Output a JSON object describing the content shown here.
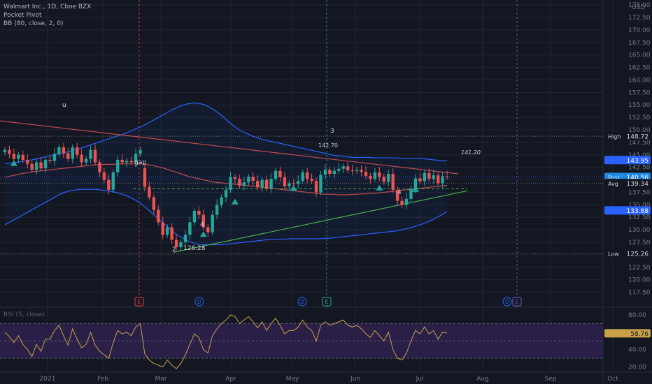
{
  "legend": {
    "title": "Walmart Inc., 1D, Cboe BZX",
    "indicator_1": "Pocket Pivot",
    "indicator_2": "BB (80, close, 2, 0)"
  },
  "rsi_legend": "RSI (5, close)",
  "colors": {
    "background": "#131722",
    "grid": "#232632",
    "up": "#26a69a",
    "down": "#ef5350",
    "bb_band": "#2962ff",
    "bb_basis": "#c24b4b",
    "trendline_upper": "#c24b4b",
    "trendline_lower": "#4caf50",
    "rsi_line": "#c9a14a",
    "rsi_fill": "#2a1f47",
    "post_label": "#2962ff",
    "event_earnings": "#f23645",
    "event_dividend": "#2962ff",
    "event_e": "#26a69a",
    "event_d_purple": "#7e57c2"
  },
  "chart_data": [
    {
      "type": "candlestick",
      "ylim": [
        114.5,
        176
      ],
      "y_ticks": [
        "117.50",
        "120.00",
        "122.50",
        "125.00",
        "127.50",
        "130.00",
        "132.50",
        "135.00",
        "137.50",
        "140.00",
        "142.50",
        "145.00",
        "147.50",
        "150.00",
        "152.50",
        "155.00",
        "157.50",
        "160.00",
        "162.50",
        "165.00",
        "167.50",
        "170.00",
        "172.50",
        "175.00"
      ],
      "y_unit": "USD",
      "x_labels": [
        "2021",
        "Feb",
        "Mar",
        "Apr",
        "May",
        "Jun",
        "Jul",
        "Aug",
        "Sep",
        "Oct"
      ],
      "closes": [
        146.0,
        145.2,
        144.2,
        145.0,
        144.0,
        143.2,
        142.0,
        143.5,
        142.3,
        144.0,
        143.8,
        145.2,
        146.5,
        145.3,
        144.2,
        146.5,
        145.0,
        143.5,
        144.2,
        146.0,
        143.5,
        141.5,
        140.0,
        138.0,
        141.5,
        144.0,
        143.5,
        143.8,
        143.5,
        145.2,
        146.0,
        138.6,
        136.5,
        134.0,
        131.5,
        129.0,
        130.5,
        128.0,
        126.5,
        127.5,
        129.0,
        131.5,
        133.8,
        133.0,
        130.5,
        129.5,
        133.0,
        135.0,
        136.5,
        138.0,
        140.5,
        140.2,
        138.8,
        139.5,
        140.6,
        139.8,
        138.5,
        140.0,
        138.3,
        140.2,
        141.8,
        140.5,
        138.7,
        139.3,
        139.2,
        139.8,
        141.5,
        140.2,
        139.8,
        137.5,
        141.0,
        142.0,
        141.2,
        141.8,
        142.2,
        142.7,
        141.9,
        141.8,
        142.0,
        141.6,
        140.8,
        140.2,
        141.5,
        140.6,
        139.6,
        141.2,
        138.0,
        135.8,
        135.0,
        136.2,
        138.2,
        140.3,
        139.7,
        141.4,
        140.2,
        140.9,
        139.3,
        140.7,
        140.6
      ],
      "opens": [
        145.5,
        146.0,
        145.2,
        144.2,
        145.0,
        144.0,
        143.2,
        142.0,
        143.5,
        142.3,
        144.0,
        143.8,
        145.2,
        146.5,
        145.3,
        144.2,
        146.5,
        145.0,
        143.5,
        144.2,
        146.0,
        143.5,
        141.5,
        140.0,
        138.0,
        141.5,
        144.0,
        143.5,
        143.8,
        143.5,
        145.2,
        142.3,
        138.6,
        136.5,
        134.0,
        131.5,
        129.0,
        130.5,
        128.0,
        126.5,
        127.5,
        129.0,
        131.5,
        133.8,
        133.0,
        130.5,
        129.5,
        133.0,
        135.0,
        136.5,
        138.0,
        140.5,
        140.2,
        138.8,
        139.5,
        140.6,
        139.8,
        138.5,
        140.0,
        138.3,
        140.2,
        141.8,
        140.5,
        138.7,
        139.3,
        139.2,
        139.8,
        141.5,
        140.2,
        139.8,
        137.5,
        141.0,
        142.0,
        141.2,
        141.8,
        142.2,
        142.7,
        141.9,
        141.8,
        142.0,
        141.6,
        140.8,
        140.2,
        141.5,
        140.6,
        139.6,
        141.2,
        138.0,
        135.8,
        135.0,
        136.2,
        138.2,
        140.3,
        139.7,
        141.4,
        140.2,
        140.9,
        139.3,
        140.7
      ],
      "bb_upper": [
        143.2,
        143.3,
        143.4,
        143.6,
        143.7,
        143.9,
        144.0,
        144.2,
        144.4,
        144.6,
        144.8,
        145.0,
        145.2,
        145.4,
        145.6,
        145.9,
        146.1,
        146.4,
        146.7,
        147.0,
        147.3,
        147.6,
        147.9,
        148.2,
        148.5,
        148.8,
        149.1,
        149.4,
        149.8,
        150.2,
        150.6,
        151.0,
        151.5,
        152.0,
        152.5,
        153.0,
        153.5,
        154.0,
        154.4,
        154.8,
        155.1,
        155.3,
        155.4,
        155.3,
        155.1,
        154.7,
        154.2,
        153.6,
        152.9,
        152.1,
        151.3,
        150.6,
        150.0,
        149.5,
        149.1,
        148.7,
        148.4,
        148.1,
        147.9,
        147.7,
        147.5,
        147.3,
        147.1,
        146.9,
        146.7,
        146.5,
        146.3,
        146.1,
        145.9,
        145.7,
        145.5,
        145.3,
        145.1,
        144.9,
        144.8,
        144.7,
        144.6,
        144.5,
        144.5,
        144.5,
        144.5,
        144.5,
        144.4,
        144.4,
        144.4,
        144.4,
        144.4,
        144.4,
        144.3,
        144.3,
        144.3,
        144.3,
        144.3,
        144.2,
        144.1,
        144.0,
        143.9,
        143.8,
        143.8
      ],
      "bb_basis": [
        140.5,
        140.7,
        140.9,
        141.1,
        141.3,
        141.4,
        141.6,
        141.7,
        141.8,
        141.9,
        142.0,
        142.1,
        142.2,
        142.3,
        142.4,
        142.5,
        142.6,
        142.7,
        142.8,
        142.9,
        143.0,
        143.0,
        143.1,
        143.1,
        143.1,
        143.2,
        143.2,
        143.2,
        143.2,
        143.2,
        143.2,
        143.1,
        143.0,
        142.8,
        142.6,
        142.4,
        142.1,
        141.8,
        141.5,
        141.2,
        140.9,
        140.6,
        140.4,
        140.2,
        140.0,
        139.8,
        139.6,
        139.5,
        139.4,
        139.3,
        139.2,
        139.1,
        139.0,
        138.9,
        138.8,
        138.7,
        138.6,
        138.5,
        138.4,
        138.3,
        138.2,
        138.1,
        138.0,
        137.9,
        137.8,
        137.7,
        137.6,
        137.5,
        137.4,
        137.3,
        137.2,
        137.1,
        137.1,
        137.1,
        137.0,
        137.0,
        137.0,
        137.1,
        137.1,
        137.2,
        137.2,
        137.3,
        137.3,
        137.4,
        137.5,
        137.6,
        137.7,
        137.8,
        137.9,
        138.0,
        138.1,
        138.2,
        138.3,
        138.4,
        138.5,
        138.6,
        138.7,
        138.8,
        138.9
      ],
      "bb_lower": [
        131.0,
        131.5,
        132.0,
        132.5,
        133.0,
        133.5,
        134.0,
        134.5,
        135.0,
        135.5,
        136.0,
        136.5,
        137.0,
        137.4,
        137.7,
        137.9,
        138.0,
        138.1,
        138.1,
        138.1,
        138.1,
        138.0,
        137.9,
        137.8,
        137.6,
        137.4,
        137.1,
        136.8,
        136.4,
        135.9,
        135.3,
        134.6,
        133.8,
        133.0,
        132.2,
        131.4,
        130.6,
        129.8,
        129.1,
        128.5,
        128.0,
        127.6,
        127.3,
        127.1,
        127.0,
        127.0,
        127.0,
        127.0,
        127.0,
        127.1,
        127.2,
        127.3,
        127.4,
        127.5,
        127.6,
        127.7,
        127.8,
        127.9,
        128.0,
        128.0,
        128.1,
        128.1,
        128.1,
        128.2,
        128.2,
        128.2,
        128.2,
        128.2,
        128.2,
        128.2,
        128.2,
        128.3,
        128.3,
        128.4,
        128.5,
        128.6,
        128.7,
        128.8,
        128.9,
        129.0,
        129.1,
        129.2,
        129.3,
        129.4,
        129.5,
        129.6,
        129.7,
        129.8,
        130.0,
        130.2,
        130.4,
        130.7,
        131.0,
        131.3,
        131.7,
        132.1,
        132.6,
        133.1,
        133.6
      ],
      "levels": [
        {
          "name": "High",
          "value": 148.72,
          "label": "148.72"
        },
        {
          "name": "Post",
          "value": 140.56,
          "label": "140.56"
        },
        {
          "name": "Avg",
          "value": 139.34,
          "label": "139.34"
        },
        {
          "name": "",
          "value": 133.88,
          "label": "133.88"
        },
        {
          "name": "Low",
          "value": 125.26,
          "label": "125.26"
        }
      ],
      "bb_upper_last_label": "143.95",
      "annotations": [
        {
          "text": "gap"
        },
        {
          "text": "126.28"
        },
        {
          "text": "142.70"
        },
        {
          "text": "141.20"
        },
        {
          "text": "3"
        },
        {
          "text": "2"
        },
        {
          "text": "4"
        },
        {
          "text": "4"
        },
        {
          "text": "u"
        }
      ],
      "events": [
        "E",
        "D",
        "D",
        "E",
        "D",
        "E"
      ]
    },
    {
      "type": "line",
      "name": "RSI (5, close)",
      "ylim": [
        14,
        88
      ],
      "y_ticks": [
        "20.00",
        "40.00",
        "60.00",
        "80.00"
      ],
      "bands": [
        30,
        50,
        70
      ],
      "last_value": "58.76",
      "values": [
        60,
        55,
        48,
        56,
        46,
        40,
        32,
        46,
        38,
        52,
        52,
        62,
        68,
        56,
        45,
        64,
        52,
        42,
        46,
        60,
        45,
        38,
        34,
        30,
        48,
        62,
        58,
        60,
        56,
        66,
        70,
        35,
        28,
        24,
        22,
        20,
        28,
        22,
        18,
        24,
        34,
        46,
        58,
        54,
        40,
        36,
        56,
        64,
        70,
        74,
        80,
        78,
        70,
        74,
        78,
        72,
        65,
        72,
        62,
        70,
        76,
        68,
        58,
        62,
        62,
        66,
        74,
        66,
        62,
        50,
        68,
        72,
        68,
        70,
        72,
        74,
        68,
        66,
        68,
        64,
        58,
        54,
        62,
        56,
        50,
        60,
        40,
        30,
        28,
        36,
        50,
        62,
        58,
        66,
        58,
        62,
        52,
        60,
        59
      ]
    }
  ]
}
